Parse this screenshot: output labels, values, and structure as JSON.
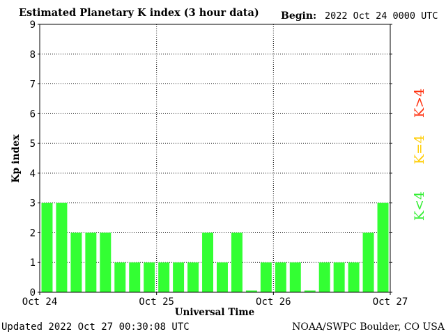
{
  "chart_data": {
    "type": "bar",
    "title": "Estimated Planetary K index (3 hour data)",
    "begin_label": "Begin:",
    "begin_value": "2022 Oct 24 0000 UTC",
    "ylabel": "Kp index",
    "xlabel": "Universal Time",
    "ylim": [
      0,
      9
    ],
    "yticks": [
      "0",
      "1",
      "2",
      "3",
      "4",
      "5",
      "6",
      "7",
      "8",
      "9"
    ],
    "xticks": [
      "Oct 24",
      "Oct 25",
      "Oct 26",
      "Oct 27"
    ],
    "grid": true,
    "values": [
      3,
      3,
      2,
      2,
      2,
      1,
      1,
      1,
      1,
      1,
      1,
      2,
      1,
      2,
      0,
      1,
      1,
      1,
      0,
      1,
      1,
      1,
      2,
      3
    ],
    "legend": [
      {
        "label": "K<4",
        "color": "#33ee33"
      },
      {
        "label": "K=4",
        "color": "#ffcc00"
      },
      {
        "label": "K>4",
        "color": "#ff3311"
      }
    ],
    "colors": {
      "low": "#33ff33",
      "mid": "#ffcc00",
      "high": "#ff3311"
    }
  },
  "footer": {
    "updated": "Updated 2022 Oct 27 00:30:08 UTC",
    "source": "NOAA/SWPC Boulder, CO USA"
  }
}
